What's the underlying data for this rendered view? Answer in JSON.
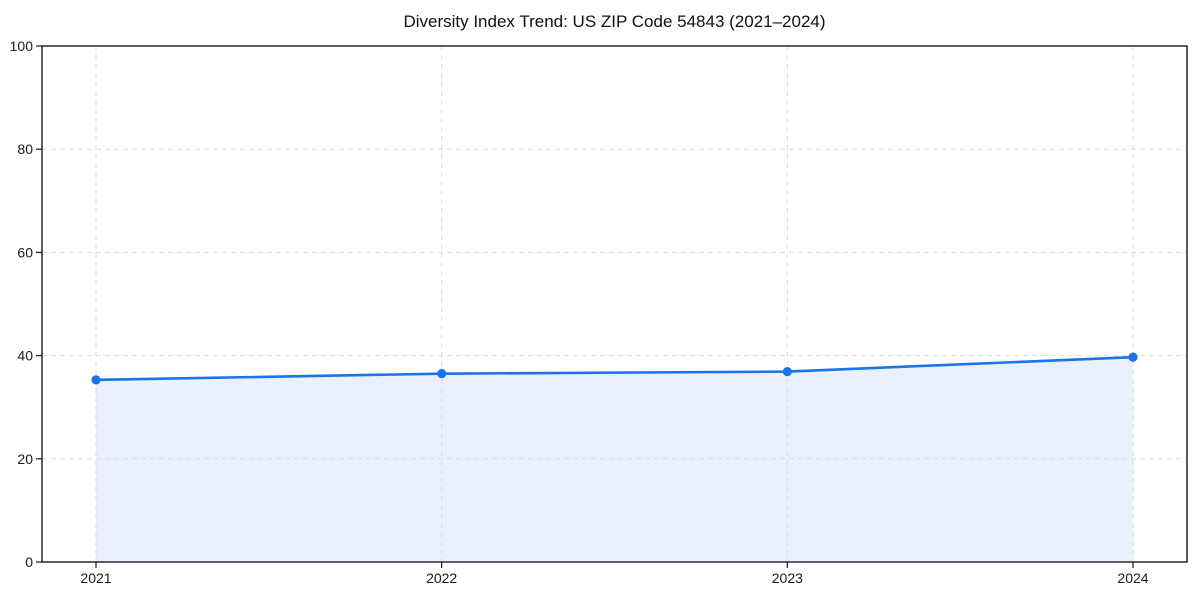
{
  "chart_data": {
    "type": "line",
    "title": "Diversity Index Trend: US ZIP Code 54843 (2021–2024)",
    "categories": [
      "2021",
      "2022",
      "2023",
      "2024"
    ],
    "series": [
      {
        "name": "Diversity Index",
        "values": [
          35.3,
          36.5,
          36.9,
          39.7
        ]
      }
    ],
    "xlabel": "",
    "ylabel": "",
    "ylim": [
      0,
      100
    ],
    "yticks": [
      0,
      20,
      40,
      60,
      80,
      100
    ],
    "grid": true,
    "grid_style": "dashed",
    "legend": "none",
    "area_fill": true,
    "marker": "circle",
    "colors": {
      "line": "#1a73e8",
      "fill": "rgba(26,115,232,0.10)",
      "grid": "#dcdcdc",
      "spine": "#1a1a1a",
      "tick": "#1a1a1a",
      "text": "#1a1a1a",
      "background": "#ffffff"
    }
  }
}
